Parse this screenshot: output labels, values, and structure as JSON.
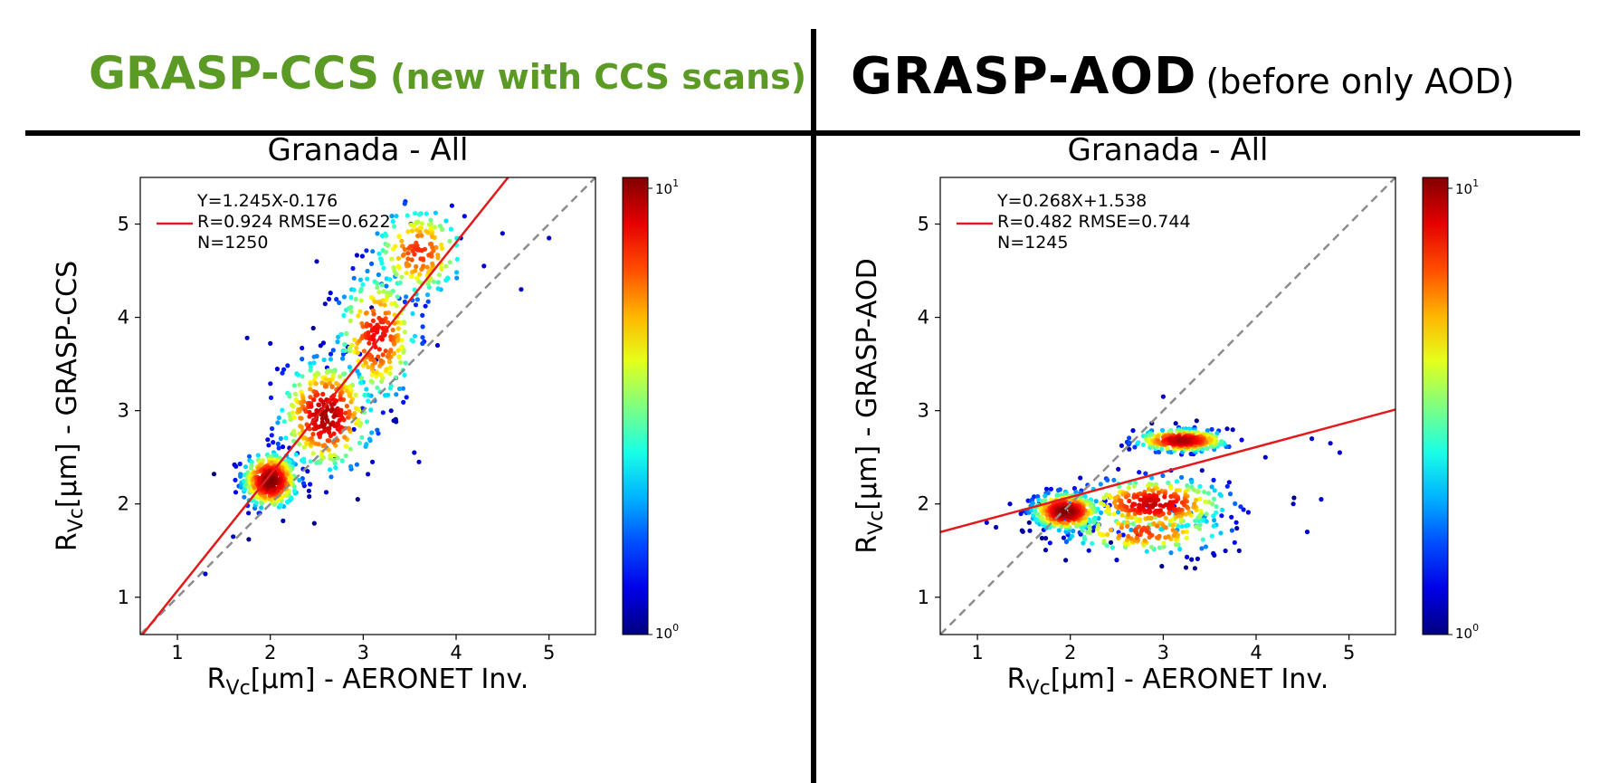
{
  "headers": {
    "left": {
      "main": "GRASP-CCS",
      "sub": "(new with CCS scans)",
      "color": "#5c9a26"
    },
    "right": {
      "main": "GRASP-AOD",
      "sub": "(before only AOD)",
      "color": "#000000"
    }
  },
  "chart_data": [
    {
      "type": "scatter",
      "title": "Granada - All",
      "xlabel": "R_Vc[µm] - AERONET Inv.",
      "ylabel": "R_Vc[µm] - GRASP-CCS",
      "xlim": [
        0.6,
        5.5
      ],
      "ylim": [
        0.6,
        5.5
      ],
      "xticks": [
        1,
        2,
        3,
        4,
        5
      ],
      "yticks": [
        1,
        2,
        3,
        4,
        5
      ],
      "colorbar": {
        "scale": "log",
        "min_label": "10^0",
        "max_label": "10^1",
        "colormap": "jet"
      },
      "one_to_one_line": true,
      "fit": {
        "slope": 1.245,
        "intercept": -0.176,
        "color": "#e31a1c"
      },
      "stats": [
        "Y=1.245X-0.176",
        "R=0.924  RMSE=0.622",
        "N=1250"
      ],
      "n": 1250,
      "density_clusters": [
        {
          "x": 2.0,
          "y": 2.25,
          "sx": 0.15,
          "sy": 0.15,
          "weight": 0.35
        },
        {
          "x": 2.6,
          "y": 2.95,
          "sx": 0.25,
          "sy": 0.3,
          "weight": 0.3
        },
        {
          "x": 3.15,
          "y": 3.8,
          "sx": 0.22,
          "sy": 0.35,
          "weight": 0.2
        },
        {
          "x": 3.6,
          "y": 4.7,
          "sx": 0.25,
          "sy": 0.25,
          "weight": 0.15
        }
      ],
      "outliers": [
        [
          1.75,
          3.78
        ],
        [
          2.0,
          3.72
        ],
        [
          2.5,
          4.6
        ],
        [
          3.1,
          2.45
        ],
        [
          3.55,
          2.55
        ],
        [
          3.6,
          2.45
        ],
        [
          4.7,
          4.3
        ],
        [
          5.0,
          4.85
        ],
        [
          4.3,
          4.55
        ],
        [
          4.5,
          4.9
        ],
        [
          3.8,
          3.7
        ],
        [
          1.6,
          1.65
        ],
        [
          1.3,
          1.25
        ],
        [
          2.9,
          2.8
        ],
        [
          3.3,
          3.0
        ],
        [
          2.7,
          2.5
        ],
        [
          2.4,
          2.35
        ],
        [
          4.05,
          4.85
        ]
      ]
    },
    {
      "type": "scatter",
      "title": "Granada - All",
      "xlabel": "R_Vc[µm] - AERONET Inv.",
      "ylabel": "R_Vc[µm] - GRASP-AOD",
      "xlim": [
        0.6,
        5.5
      ],
      "ylim": [
        0.6,
        5.5
      ],
      "xticks": [
        1,
        2,
        3,
        4,
        5
      ],
      "yticks": [
        1,
        2,
        3,
        4,
        5
      ],
      "colorbar": {
        "scale": "log",
        "min_label": "10^0",
        "max_label": "10^1",
        "colormap": "jet"
      },
      "one_to_one_line": true,
      "fit": {
        "slope": 0.268,
        "intercept": 1.538,
        "color": "#e31a1c"
      },
      "stats": [
        "Y=0.268X+1.538",
        "R=0.482  RMSE=0.744",
        "N=1245"
      ],
      "n": 1245,
      "density_clusters": [
        {
          "x": 3.2,
          "y": 2.68,
          "sx": 0.25,
          "sy": 0.06,
          "weight": 0.28
        },
        {
          "x": 1.95,
          "y": 1.92,
          "sx": 0.18,
          "sy": 0.1,
          "weight": 0.34
        },
        {
          "x": 2.9,
          "y": 2.0,
          "sx": 0.4,
          "sy": 0.14,
          "weight": 0.25
        },
        {
          "x": 2.8,
          "y": 1.7,
          "sx": 0.45,
          "sy": 0.12,
          "weight": 0.13
        }
      ],
      "outliers": [
        [
          4.8,
          2.65
        ],
        [
          4.6,
          2.7
        ],
        [
          4.4,
          2.0
        ],
        [
          4.55,
          1.7
        ],
        [
          4.7,
          2.05
        ],
        [
          3.0,
          3.15
        ],
        [
          3.55,
          1.45
        ],
        [
          1.2,
          1.75
        ],
        [
          1.1,
          1.8
        ],
        [
          2.2,
          1.5
        ],
        [
          4.9,
          2.55
        ],
        [
          4.1,
          2.5
        ],
        [
          1.35,
          2.0
        ],
        [
          2.5,
          1.4
        ]
      ]
    }
  ]
}
